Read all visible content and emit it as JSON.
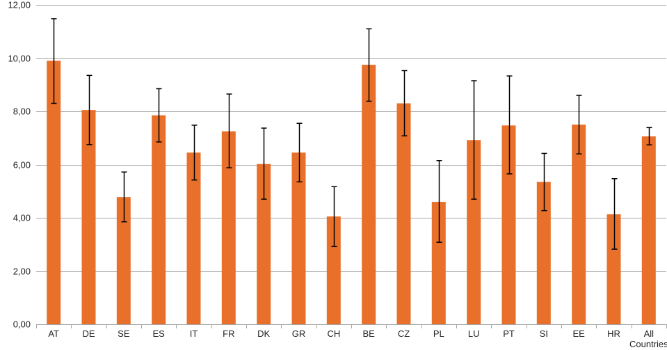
{
  "chart_data": {
    "type": "bar",
    "title": "",
    "xlabel": "",
    "ylabel": "",
    "ylim": [
      0,
      12
    ],
    "ytick_values": [
      0,
      2,
      4,
      6,
      8,
      10,
      12
    ],
    "ytick_labels": [
      "0,00",
      "2,00",
      "4,00",
      "6,00",
      "8,00",
      "10,00",
      "12,00"
    ],
    "grid": true,
    "legend": "none",
    "colors": {
      "bar": "#E8702A",
      "grid": "#A6A6A6",
      "error": "#000000",
      "axis": "#A6A6A6"
    },
    "categories": [
      [
        "AT"
      ],
      [
        "DE"
      ],
      [
        "SE"
      ],
      [
        "ES"
      ],
      [
        "IT"
      ],
      [
        "FR"
      ],
      [
        "DK"
      ],
      [
        "GR"
      ],
      [
        "CH"
      ],
      [
        "BE"
      ],
      [
        "CZ"
      ],
      [
        "PL"
      ],
      [
        "LU"
      ],
      [
        "PT"
      ],
      [
        "SI"
      ],
      [
        "EE"
      ],
      [
        "HR"
      ],
      [
        "All",
        "Countries"
      ]
    ],
    "values": [
      9.9,
      8.05,
      4.78,
      7.85,
      6.45,
      7.25,
      6.02,
      6.45,
      4.05,
      9.75,
      8.3,
      4.6,
      6.92,
      7.47,
      5.35,
      7.5,
      4.13,
      7.06
    ],
    "error_low": [
      8.3,
      6.75,
      3.85,
      6.85,
      5.42,
      5.88,
      4.7,
      5.35,
      2.92,
      8.38,
      7.08,
      3.08,
      4.7,
      5.65,
      4.27,
      6.4,
      2.82,
      6.74
    ],
    "error_high": [
      11.48,
      9.35,
      5.72,
      8.85,
      7.48,
      8.65,
      7.37,
      7.55,
      5.17,
      11.1,
      9.53,
      6.15,
      9.15,
      9.33,
      6.42,
      8.6,
      5.47,
      7.39
    ]
  }
}
